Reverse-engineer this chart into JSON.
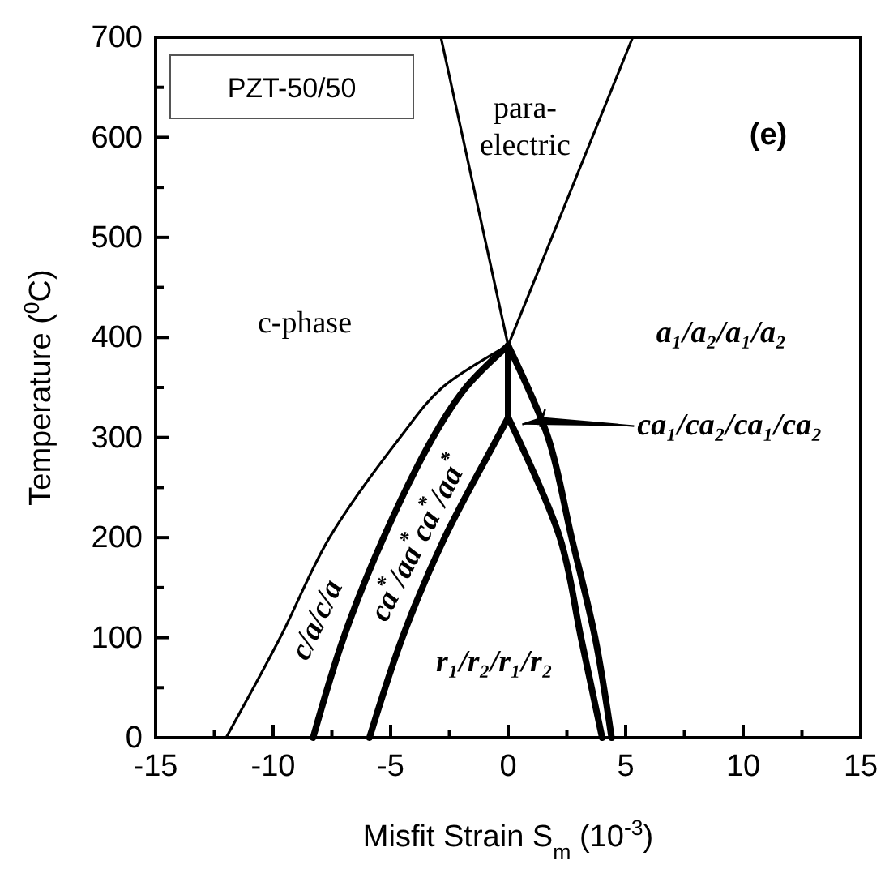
{
  "chart_data": {
    "type": "line",
    "title": "PZT-50/50",
    "subtitle": "(e)",
    "xlabel": "Misfit Strain S$_{m}$ (10$^{-3}$)",
    "ylabel": "Temperature ($^{0}$C)",
    "xlim": [
      -15,
      15
    ],
    "ylim": [
      0,
      700
    ],
    "xticks": [
      -15,
      {
        "value": -12.5,
        "label": null
      },
      -10,
      {
        "value": -7.5,
        "label": null
      },
      -5,
      {
        "value": -2.5,
        "label": null
      },
      0,
      {
        "value": 2.5,
        "label": null
      },
      5,
      {
        "value": 7.5,
        "label": null
      },
      10,
      {
        "value": 12.5,
        "label": null
      },
      15
    ],
    "yticks": [
      0,
      {
        "value": 50,
        "label": null
      },
      100,
      {
        "value": 150,
        "label": null
      },
      200,
      {
        "value": 250,
        "label": null
      },
      300,
      {
        "value": 350,
        "label": null
      },
      400,
      {
        "value": 450,
        "label": null
      },
      500,
      {
        "value": 550,
        "label": null
      },
      600,
      {
        "value": 650,
        "label": null
      },
      700
    ],
    "grid": false,
    "marker": "none",
    "line_style": "solid",
    "series": [
      {
        "color": "#000000",
        "x": [
          0,
          -2.86
        ],
        "values": [
          392,
          700
        ]
      },
      {
        "color": "#000000",
        "x": [
          0,
          5.3
        ],
        "values": [
          392,
          700
        ]
      },
      {
        "color": "#000000",
        "x": [
          -12,
          -9.7,
          -7.6,
          -4.6,
          -2.8,
          0
        ],
        "values": [
          0,
          100,
          200,
          300,
          350,
          392
        ]
      },
      {
        "color": "#000000",
        "x": [
          -8.3,
          -7.0,
          -5.3,
          -3.2,
          -1.8,
          0
        ],
        "values": [
          0,
          100,
          200,
          300,
          350,
          392
        ]
      },
      {
        "color": "#000000",
        "x": [
          -5.9,
          -4.5,
          -2.7,
          -0.45,
          0
        ],
        "values": [
          0,
          100,
          200,
          300,
          320
        ]
      },
      {
        "color": "#000000",
        "x": [
          0,
          0
        ],
        "values": [
          320,
          392
        ]
      },
      {
        "color": "#000000",
        "x": [
          0,
          2.2,
          3.1,
          4.0
        ],
        "values": [
          320,
          200,
          100,
          0
        ]
      },
      {
        "color": "#000000",
        "x": [
          0,
          1.7,
          2.7,
          3.7,
          4.4
        ],
        "values": [
          392,
          300,
          200,
          100,
          0
        ]
      }
    ],
    "annotations": [
      "c-phase",
      "para-electric",
      "a₁/a₂/a₁/a₂",
      "c/a/c/a",
      "ca$^{*}$/aa$^{*}$ca$^{*}$/aa$^{*}$",
      "r₁/r₂/r₁/r₂",
      {
        "text": "ca₁/ca₂/ca₁/ca₂",
        "x": 0.6,
        "y": 313
      }
    ]
  }
}
